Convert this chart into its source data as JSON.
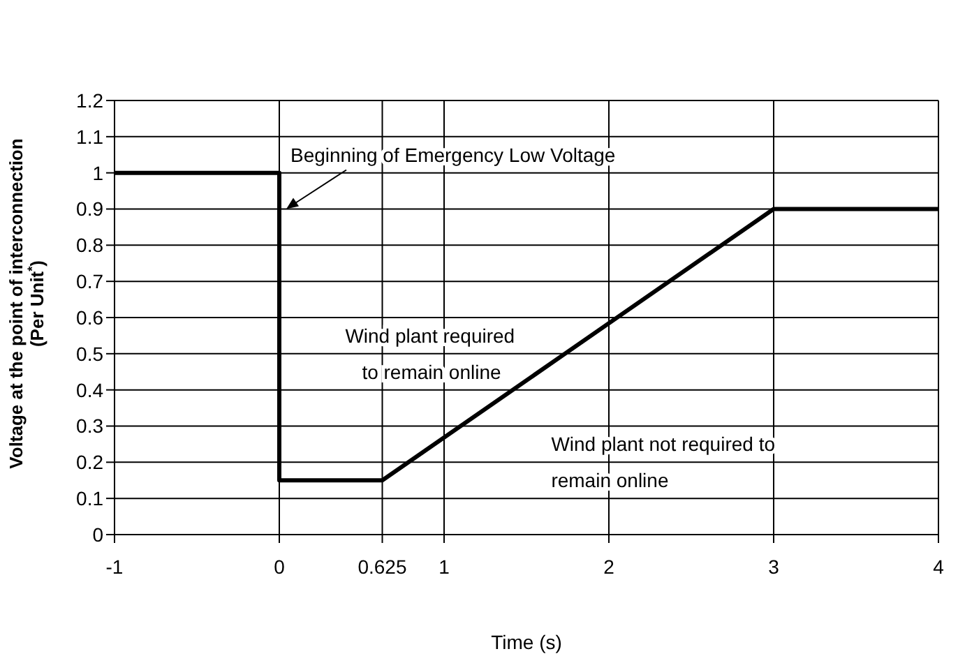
{
  "chart_data": {
    "type": "line",
    "xlabel": "Time (s)",
    "ylabel": "Voltage at the point of interconnection\n(Per Unit$^{*}$)",
    "x": [
      -1,
      0,
      0,
      0.625,
      3,
      4
    ],
    "series": [
      {
        "color": "#000000",
        "values": [
          1,
          1,
          0.15,
          0.15,
          0.9,
          0.9
        ]
      }
    ],
    "xlim": [
      -1,
      4
    ],
    "xticks": [
      -1,
      0,
      0.625,
      1,
      2,
      3,
      4
    ],
    "ylim": [
      0,
      1.2
    ],
    "yticks": [
      0,
      0.1,
      0.2,
      0.3,
      0.4,
      0.5,
      0.6,
      0.7,
      0.8,
      0.9,
      1,
      1.1,
      1.2
    ],
    "grid": true,
    "marker": "none",
    "line_style": "solid",
    "annotations": [
      {
        "text": "Beginning of Emergency Low Voltage",
        "x": 0,
        "y": 0.9
      },
      "Wind plant required\nto remain online",
      "Wind plant not required to\nremain online"
    ]
  }
}
